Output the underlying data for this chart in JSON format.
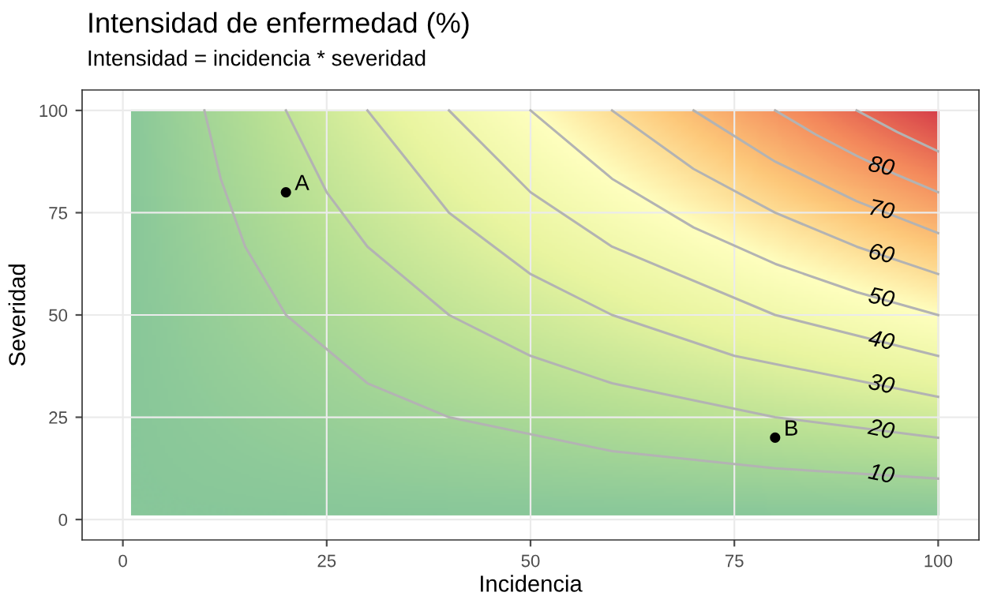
{
  "chart_data": {
    "type": "line",
    "title": "Intensidad de enfermedad (%)",
    "subtitle": "Intensidad = incidencia * severidad",
    "xlabel": "Incidencia",
    "ylabel": "Severidad",
    "xlim": [
      -5,
      105
    ],
    "ylim": [
      -5,
      105
    ],
    "xticks": [
      0,
      25,
      50,
      75,
      100
    ],
    "yticks": [
      0,
      25,
      50,
      75,
      100
    ],
    "grid": true,
    "legend": false,
    "series": [
      {
        "name": "10",
        "color": "#b3b3b3",
        "x": [
          10,
          12,
          15,
          20,
          30,
          40,
          60,
          80,
          100
        ],
        "values": [
          100,
          83.3,
          66.7,
          50,
          33.3,
          25,
          16.7,
          12.5,
          10
        ]
      },
      {
        "name": "20",
        "color": "#b3b3b3",
        "x": [
          20,
          25,
          30,
          40,
          50,
          60,
          80,
          100
        ],
        "values": [
          100,
          80,
          66.7,
          50,
          40,
          33.3,
          25,
          20
        ]
      },
      {
        "name": "30",
        "color": "#b3b3b3",
        "x": [
          30,
          40,
          50,
          60,
          75,
          100
        ],
        "values": [
          100,
          75,
          60,
          50,
          40,
          30
        ]
      },
      {
        "name": "40",
        "color": "#b3b3b3",
        "x": [
          40,
          50,
          60,
          80,
          100
        ],
        "values": [
          100,
          80,
          66.7,
          50,
          40
        ]
      },
      {
        "name": "50",
        "color": "#b3b3b3",
        "x": [
          50,
          60,
          70,
          80,
          90,
          100
        ],
        "values": [
          100,
          83.3,
          71.4,
          62.5,
          55.6,
          50
        ]
      },
      {
        "name": "60",
        "color": "#b3b3b3",
        "x": [
          60,
          70,
          80,
          90,
          100
        ],
        "values": [
          100,
          85.7,
          75,
          66.7,
          60
        ]
      },
      {
        "name": "70",
        "color": "#b3b3b3",
        "x": [
          70,
          80,
          90,
          100
        ],
        "values": [
          100,
          87.5,
          77.8,
          70
        ]
      },
      {
        "name": "80",
        "color": "#b3b3b3",
        "x": [
          80,
          85,
          90,
          95,
          100
        ],
        "values": [
          100,
          94.1,
          88.9,
          84.2,
          80
        ]
      },
      {
        "color": "#b3b3b3",
        "x": [
          90,
          95,
          100
        ],
        "values": [
          100,
          94.7,
          90
        ]
      },
      {
        "type": "scatter",
        "color": "#000000",
        "x": [
          20,
          80
        ],
        "values": [
          80,
          20
        ],
        "value_labels": [
          "A",
          "B"
        ]
      }
    ]
  }
}
